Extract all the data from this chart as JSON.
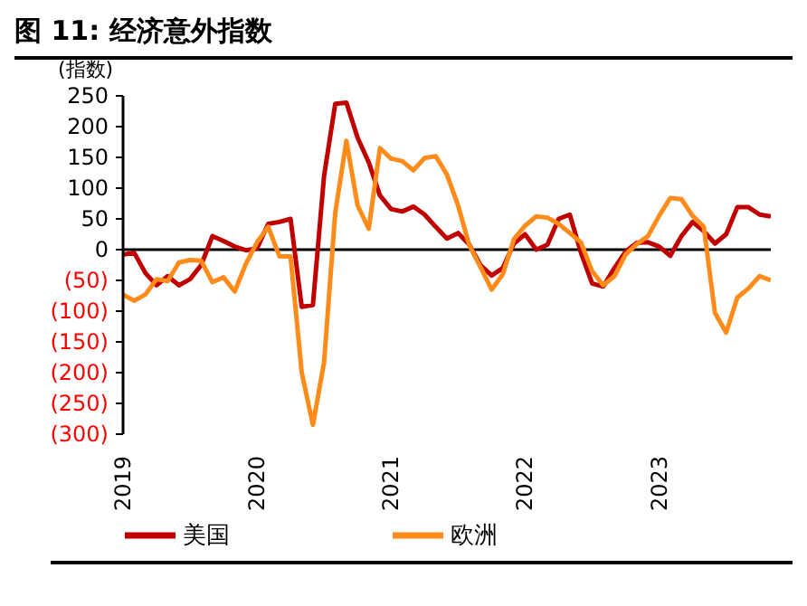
{
  "chart_data": {
    "type": "line",
    "title": "图 11: 经济意外指数",
    "ylabel": "(指数)",
    "x": [
      "2019-01",
      "2019-02",
      "2019-03",
      "2019-04",
      "2019-05",
      "2019-06",
      "2019-07",
      "2019-08",
      "2019-09",
      "2019-10",
      "2019-11",
      "2019-12",
      "2020-01",
      "2020-02",
      "2020-03",
      "2020-04",
      "2020-05",
      "2020-06",
      "2020-07",
      "2020-08",
      "2020-09",
      "2020-10",
      "2020-11",
      "2020-12",
      "2021-01",
      "2021-02",
      "2021-03",
      "2021-04",
      "2021-05",
      "2021-06",
      "2021-07",
      "2021-08",
      "2021-09",
      "2021-10",
      "2021-11",
      "2021-12",
      "2022-01",
      "2022-02",
      "2022-03",
      "2022-04",
      "2022-05",
      "2022-06",
      "2022-07",
      "2022-08",
      "2022-09",
      "2022-10",
      "2022-11",
      "2022-12",
      "2023-01",
      "2023-02",
      "2023-03",
      "2023-04",
      "2023-05",
      "2023-06",
      "2023-07",
      "2023-08",
      "2023-09",
      "2023-10",
      "2023-11"
    ],
    "series": [
      {
        "name": "美国",
        "color": "#c00000",
        "values": [
          -8,
          -5,
          -38,
          -58,
          -43,
          -58,
          -48,
          -25,
          22,
          14,
          5,
          -1,
          2,
          42,
          45,
          50,
          -93,
          -90,
          120,
          237,
          239,
          182,
          142,
          88,
          66,
          62,
          70,
          57,
          37,
          18,
          27,
          8,
          -25,
          -42,
          -30,
          10,
          25,
          0,
          8,
          50,
          57,
          -5,
          -55,
          -60,
          -30,
          -3,
          11,
          12,
          5,
          -10,
          22,
          45,
          30,
          10,
          25,
          69,
          69,
          57,
          54
        ]
      },
      {
        "name": "欧洲",
        "color": "#ff8c1a",
        "values": [
          -73,
          -83,
          -73,
          -48,
          -51,
          -21,
          -17,
          -18,
          -53,
          -45,
          -68,
          -23,
          12,
          37,
          -11,
          -11,
          -200,
          -285,
          -183,
          60,
          177,
          72,
          34,
          165,
          148,
          144,
          129,
          149,
          152,
          122,
          72,
          7,
          -28,
          -65,
          -40,
          17,
          39,
          54,
          52,
          42,
          27,
          12,
          -35,
          -58,
          -43,
          -8,
          9,
          22,
          55,
          84,
          82,
          55,
          37,
          -103,
          -135,
          -78,
          -63,
          -43,
          -50
        ]
      }
    ],
    "xlim": [
      "2019-01",
      "2023-11"
    ],
    "xticks": [
      {
        "value": "2019-01",
        "label": "2019"
      },
      {
        "value": "2020-01",
        "label": "2020"
      },
      {
        "value": "2021-01",
        "label": "2021"
      },
      {
        "value": "2022-01",
        "label": "2022"
      },
      {
        "value": "2023-01",
        "label": "2023"
      }
    ],
    "ylim": [
      -300,
      250
    ],
    "yticks": [
      {
        "value": -300,
        "label": "(300)"
      },
      {
        "value": -250,
        "label": "(250)"
      },
      {
        "value": -200,
        "label": "(200)"
      },
      {
        "value": -150,
        "label": "(150)"
      },
      {
        "value": -100,
        "label": "(100)"
      },
      {
        "value": -50,
        "label": "(50)"
      },
      0,
      50,
      100,
      150,
      200,
      250
    ],
    "ref_lines": [
      {
        "axis": "y",
        "value": 0,
        "color": "#000000"
      }
    ],
    "grid": false,
    "legend": "bottom",
    "marker": "none",
    "line_style": "solid"
  }
}
